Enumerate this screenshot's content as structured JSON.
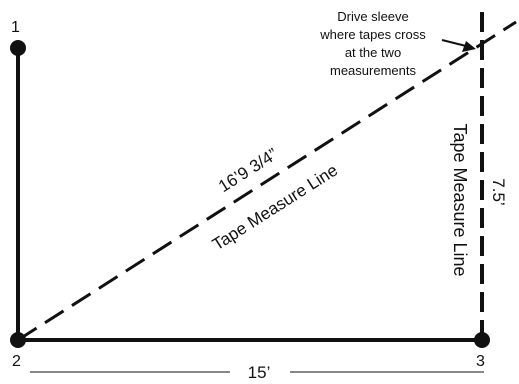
{
  "points": [
    {
      "id": "p1",
      "label": "1"
    },
    {
      "id": "p2",
      "label": "2"
    },
    {
      "id": "p3",
      "label": "3"
    }
  ],
  "callout": {
    "lines": [
      "Drive sleeve",
      "where tapes cross",
      "at the two",
      "measurements"
    ]
  },
  "diagonal": {
    "measurement": "16’9 3/4”",
    "label": "Tape Measure Line"
  },
  "vertical": {
    "measurement": "7.5’",
    "label": "Tape Measure Line"
  },
  "base": {
    "measurement": "15’"
  },
  "colors": {
    "ink": "#111111",
    "background": "#ffffff"
  }
}
